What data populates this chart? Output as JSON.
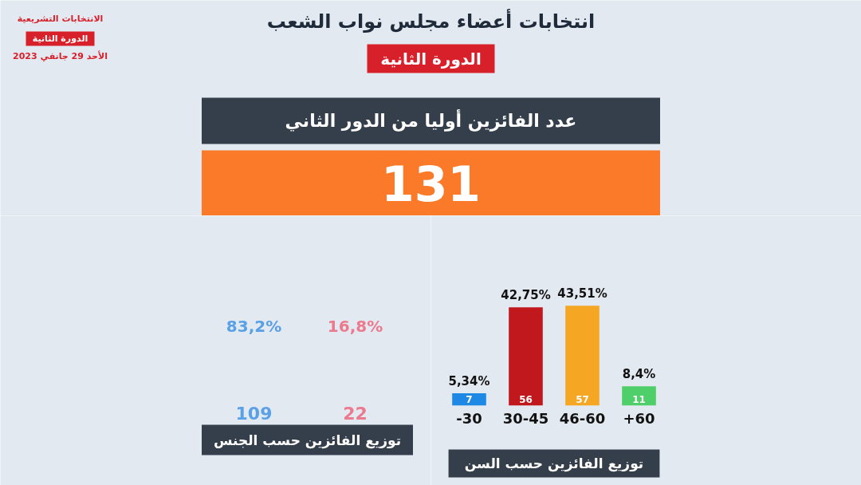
{
  "chart_data": [
    {
      "type": "other",
      "title": "انتخابات أعضاء مجلس نواب الشعب",
      "subtitle": "الدورة الثانية",
      "annotations": [
        "الانتخابات التشريعية",
        "الدورة الثانية",
        "الأحد 29 جانفي 2023",
        "عدد الفائزين أوليا من الدور الثاني",
        "131"
      ]
    },
    {
      "type": "other",
      "xlabel": "توزيع الفائزين حسب الجنس",
      "colors": [
        "#5aa0e6",
        "#ec7a8e"
      ],
      "annotations": [
        "83,2%",
        "109",
        "16,8%",
        "22"
      ]
    },
    {
      "type": "bar",
      "xlabel": "توزيع الفائزين حسب السن",
      "categories": [
        "-30",
        "30-45",
        "46-60",
        "+60"
      ],
      "values": [
        7,
        56,
        57,
        11
      ],
      "colors": [
        "#1e88e5",
        "#c0181c",
        "#f5a623",
        "#4fcf6a"
      ],
      "data_labels": true,
      "annotations": [
        {
          "text": "5,34%",
          "x": "-30",
          "y": 7
        },
        {
          "text": "42,75%",
          "x": "30-45",
          "y": 56
        },
        {
          "text": "43,51%",
          "x": "46-60",
          "y": 57
        },
        {
          "text": "8,4%",
          "x": "+60",
          "y": 11
        }
      ]
    }
  ]
}
